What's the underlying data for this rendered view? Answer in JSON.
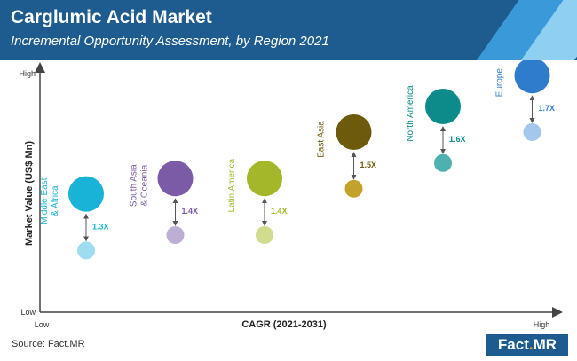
{
  "header": {
    "title": "Carglumic Acid Market",
    "subtitle": "Incremental Opportunity Assessment, by Region 2021"
  },
  "footer": {
    "source": "Source: Fact.MR",
    "logo_main": "Fact",
    "logo_dot": ".",
    "logo_tail": "MR"
  },
  "chart_data": {
    "type": "scatter",
    "xlabel": "CAGR (2021-2031)",
    "ylabel": "Market Value (US$ Mn)",
    "x_low_label": "Low",
    "x_high_label": "High",
    "y_low_label": "Low",
    "y_high_label": "High",
    "regions": [
      {
        "name": "Middle East & Africa",
        "label_lines": [
          "Middle East",
          "& Africa"
        ],
        "multiplier": "1.3X",
        "color": "#18b3d6",
        "light_color": "#9fdcef",
        "x": 1,
        "y_2021": 1.2,
        "y_2031": 2.3
      },
      {
        "name": "South Asia & Oceania",
        "label_lines": [
          "South Asia",
          "& Oceania"
        ],
        "multiplier": "1.4X",
        "color": "#7b5aa6",
        "light_color": "#bdaed4",
        "x": 2,
        "y_2021": 1.5,
        "y_2031": 2.6
      },
      {
        "name": "Latin America",
        "label_lines": [
          "Latin America"
        ],
        "multiplier": "1.4X",
        "color": "#a4b62a",
        "light_color": "#d2dc8e",
        "x": 3,
        "y_2021": 1.5,
        "y_2031": 2.6
      },
      {
        "name": "East Asia",
        "label_lines": [
          "East Asia"
        ],
        "multiplier": "1.5X",
        "color": "#6e5a0c",
        "light_color": "#c2a22a",
        "x": 4,
        "y_2021": 2.4,
        "y_2031": 3.5
      },
      {
        "name": "North America",
        "label_lines": [
          "North America"
        ],
        "multiplier": "1.6X",
        "color": "#0d8a8a",
        "light_color": "#4fb0b0",
        "x": 5,
        "y_2021": 2.9,
        "y_2031": 4.0
      },
      {
        "name": "Europe",
        "label_lines": [
          "Europe"
        ],
        "multiplier": "1.7X",
        "color": "#2f7ccc",
        "light_color": "#a4c7ec",
        "x": 6,
        "y_2021": 3.5,
        "y_2031": 4.6
      }
    ]
  }
}
